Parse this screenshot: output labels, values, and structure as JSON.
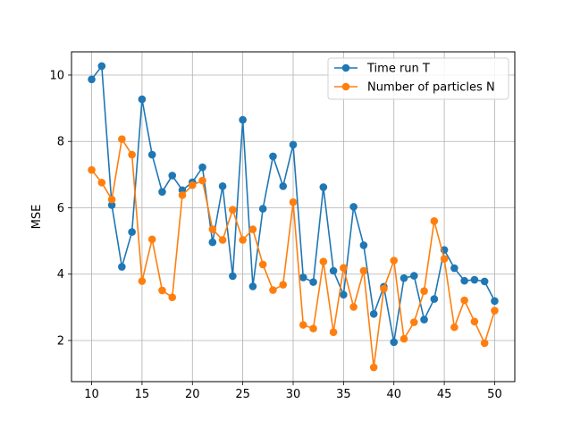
{
  "chart_data": {
    "type": "line",
    "title": "",
    "xlabel": "",
    "ylabel": "MSE",
    "xlim": [
      8.0,
      52.0
    ],
    "ylim": [
      0.76,
      10.7
    ],
    "xticks": [
      10,
      15,
      20,
      25,
      30,
      35,
      40,
      45,
      50
    ],
    "yticks": [
      2,
      4,
      6,
      8,
      10
    ],
    "grid": true,
    "legend_position": "top-right",
    "x": [
      10,
      11,
      12,
      13,
      14,
      15,
      16,
      17,
      18,
      19,
      20,
      21,
      22,
      23,
      24,
      25,
      26,
      27,
      28,
      29,
      30,
      31,
      32,
      33,
      34,
      35,
      36,
      37,
      38,
      39,
      40,
      41,
      42,
      43,
      44,
      45,
      46,
      47,
      48,
      49,
      50
    ],
    "series": [
      {
        "name": "Time run T",
        "color": "#1f77b4",
        "marker": "circle",
        "values": [
          9.87,
          10.27,
          6.08,
          4.22,
          5.27,
          9.27,
          7.6,
          6.48,
          6.97,
          6.53,
          6.77,
          7.22,
          4.96,
          6.65,
          3.94,
          8.65,
          3.63,
          5.97,
          7.55,
          6.65,
          7.9,
          3.9,
          3.76,
          6.62,
          4.1,
          3.38,
          6.03,
          4.87,
          2.8,
          3.62,
          1.95,
          3.88,
          3.95,
          2.63,
          3.25,
          4.73,
          4.18,
          3.8,
          3.83,
          3.78,
          3.19
        ]
      },
      {
        "name": "Number of particles N",
        "color": "#ff7f0e",
        "marker": "circle",
        "values": [
          7.14,
          6.76,
          6.25,
          8.07,
          7.6,
          3.79,
          5.05,
          3.51,
          3.3,
          6.38,
          6.68,
          6.82,
          5.35,
          5.03,
          5.94,
          5.03,
          5.35,
          4.29,
          3.52,
          3.68,
          6.17,
          2.47,
          2.36,
          4.38,
          2.25,
          4.19,
          3.01,
          4.1,
          1.19,
          3.56,
          4.41,
          2.05,
          2.55,
          3.49,
          5.6,
          4.46,
          2.4,
          3.21,
          2.57,
          1.92,
          2.9
        ]
      }
    ]
  }
}
